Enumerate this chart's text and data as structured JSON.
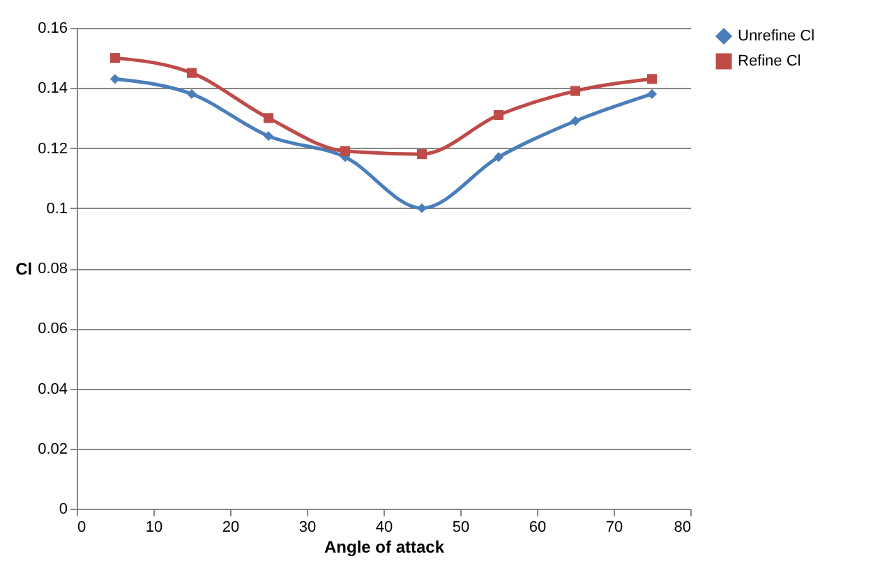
{
  "chart_data": {
    "type": "line",
    "xlabel": "Angle of attack",
    "ylabel": "Cl",
    "x": [
      5,
      15,
      25,
      35,
      45,
      55,
      65,
      75
    ],
    "series": [
      {
        "name": "Unrefine Cl",
        "color": "#4a7ebb",
        "marker": "diamond",
        "values": [
          0.143,
          0.138,
          0.124,
          0.117,
          0.1,
          0.117,
          0.129,
          0.138
        ]
      },
      {
        "name": "Refine Cl",
        "color": "#be4b48",
        "marker": "square",
        "values": [
          0.15,
          0.145,
          0.13,
          0.119,
          0.118,
          0.131,
          0.139,
          0.143
        ]
      }
    ],
    "xlim": [
      0,
      80
    ],
    "xticks": [
      0,
      10,
      20,
      30,
      40,
      50,
      60,
      70,
      80
    ],
    "ylim": [
      0,
      0.16
    ],
    "yticks": [
      0,
      0.02,
      0.04,
      0.06,
      0.08,
      0.1,
      0.12,
      0.14,
      0.16
    ],
    "grid": "y",
    "legend": "right"
  }
}
